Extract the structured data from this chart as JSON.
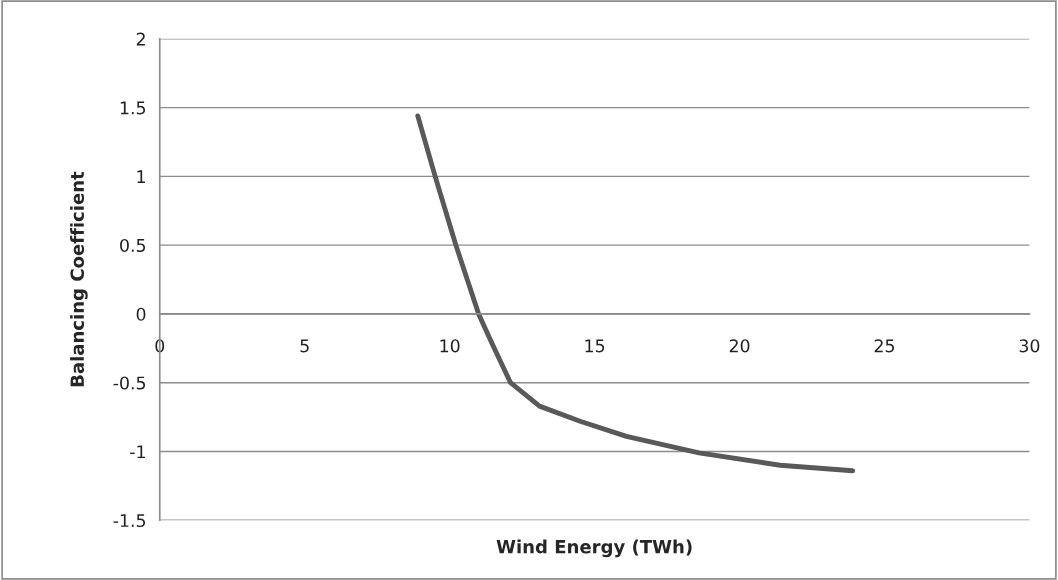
{
  "chart_data": {
    "type": "line",
    "xlabel": "Wind Energy (TWh)",
    "ylabel": "Balancing Coefficient",
    "x": [
      8.9,
      9.5,
      10.2,
      11.0,
      11.45,
      12.1,
      13.1,
      14.5,
      16.1,
      18.6,
      21.4,
      23.9
    ],
    "series": [
      {
        "color": "#595959",
        "values": [
          1.44,
          1.0,
          0.51,
          0,
          -0.21,
          -0.5,
          -0.67,
          -0.78,
          -0.89,
          -1.01,
          -1.1,
          -1.14
        ]
      }
    ],
    "xlim": [
      0,
      30
    ],
    "xticks": [
      0,
      5,
      10,
      15,
      20,
      25,
      30
    ],
    "ylim": [
      -1.5,
      2
    ],
    "yticks": [
      -1.5,
      -1,
      -0.5,
      0,
      0.5,
      1,
      1.5,
      2
    ],
    "grid": "y",
    "marker": "none",
    "line_style": "solid"
  }
}
